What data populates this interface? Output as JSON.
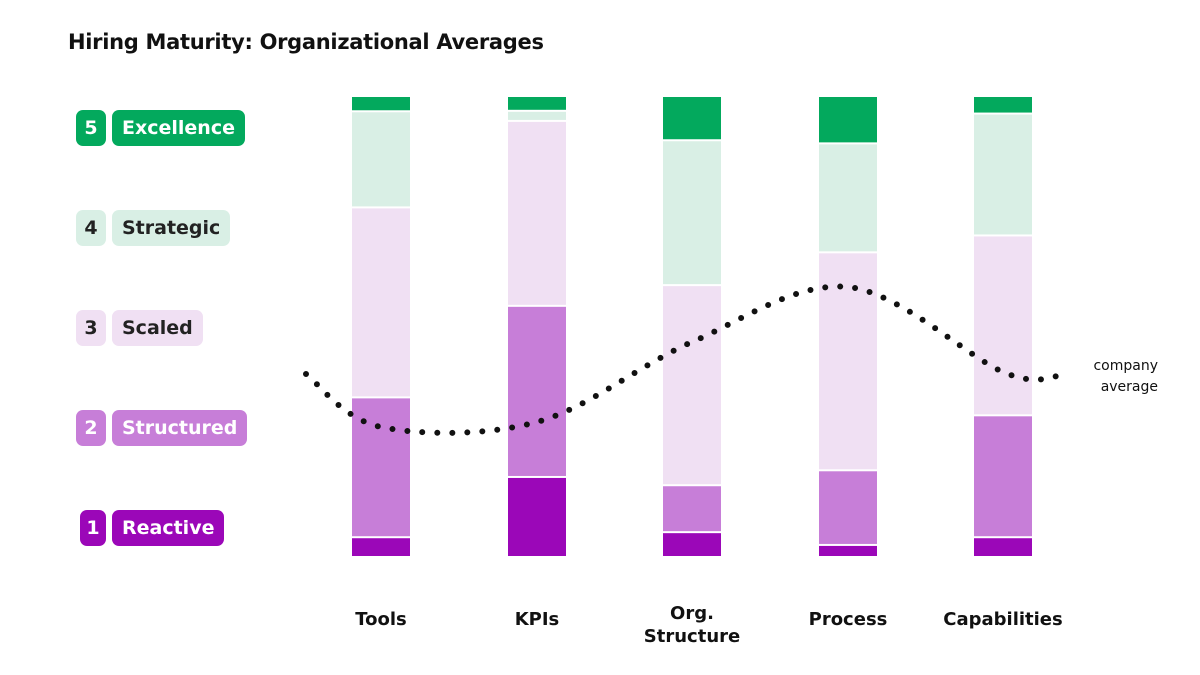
{
  "colors": {
    "level1": "#9b07b8",
    "level2": "#c77ed8",
    "level3": "#f0e0f3",
    "level4": "#d9efe5",
    "level5": "#03a95d",
    "dots": "#111111"
  },
  "chart_data": {
    "type": "bar",
    "stacked": true,
    "title": "Hiring Maturity: Organizational Averages",
    "categories": [
      "Tools",
      "KPIs",
      "Org.\nStructure",
      "Process",
      "Capabilities"
    ],
    "series": [
      {
        "name": "1 Reactive",
        "values": [
          4.3,
          17.4,
          5.4,
          2.6,
          4.3
        ]
      },
      {
        "name": "2 Structured",
        "values": [
          30.4,
          37.2,
          10.2,
          16.1,
          26.5
        ]
      },
      {
        "name": "3 Scaled",
        "values": [
          41.3,
          40.2,
          43.5,
          47.0,
          39.1
        ]
      },
      {
        "name": "4 Strategic",
        "values": [
          20.9,
          2.2,
          31.5,
          23.5,
          26.5
        ]
      },
      {
        "name": "5 Excellence",
        "values": [
          3.1,
          3.0,
          9.4,
          10.0,
          3.6
        ]
      }
    ],
    "ylim": [
      0,
      100
    ],
    "company_average": {
      "label": "company\naverage",
      "values": [
        2.0,
        2.05,
        2.85,
        3.4,
        2.55
      ],
      "style": "dotted"
    },
    "legend": {
      "placement": "left",
      "levels": [
        {
          "number": "5",
          "name": "Excellence"
        },
        {
          "number": "4",
          "name": "Strategic"
        },
        {
          "number": "3",
          "name": "Scaled"
        },
        {
          "number": "2",
          "name": "Structured"
        },
        {
          "number": "1",
          "name": "Reactive"
        }
      ]
    }
  }
}
